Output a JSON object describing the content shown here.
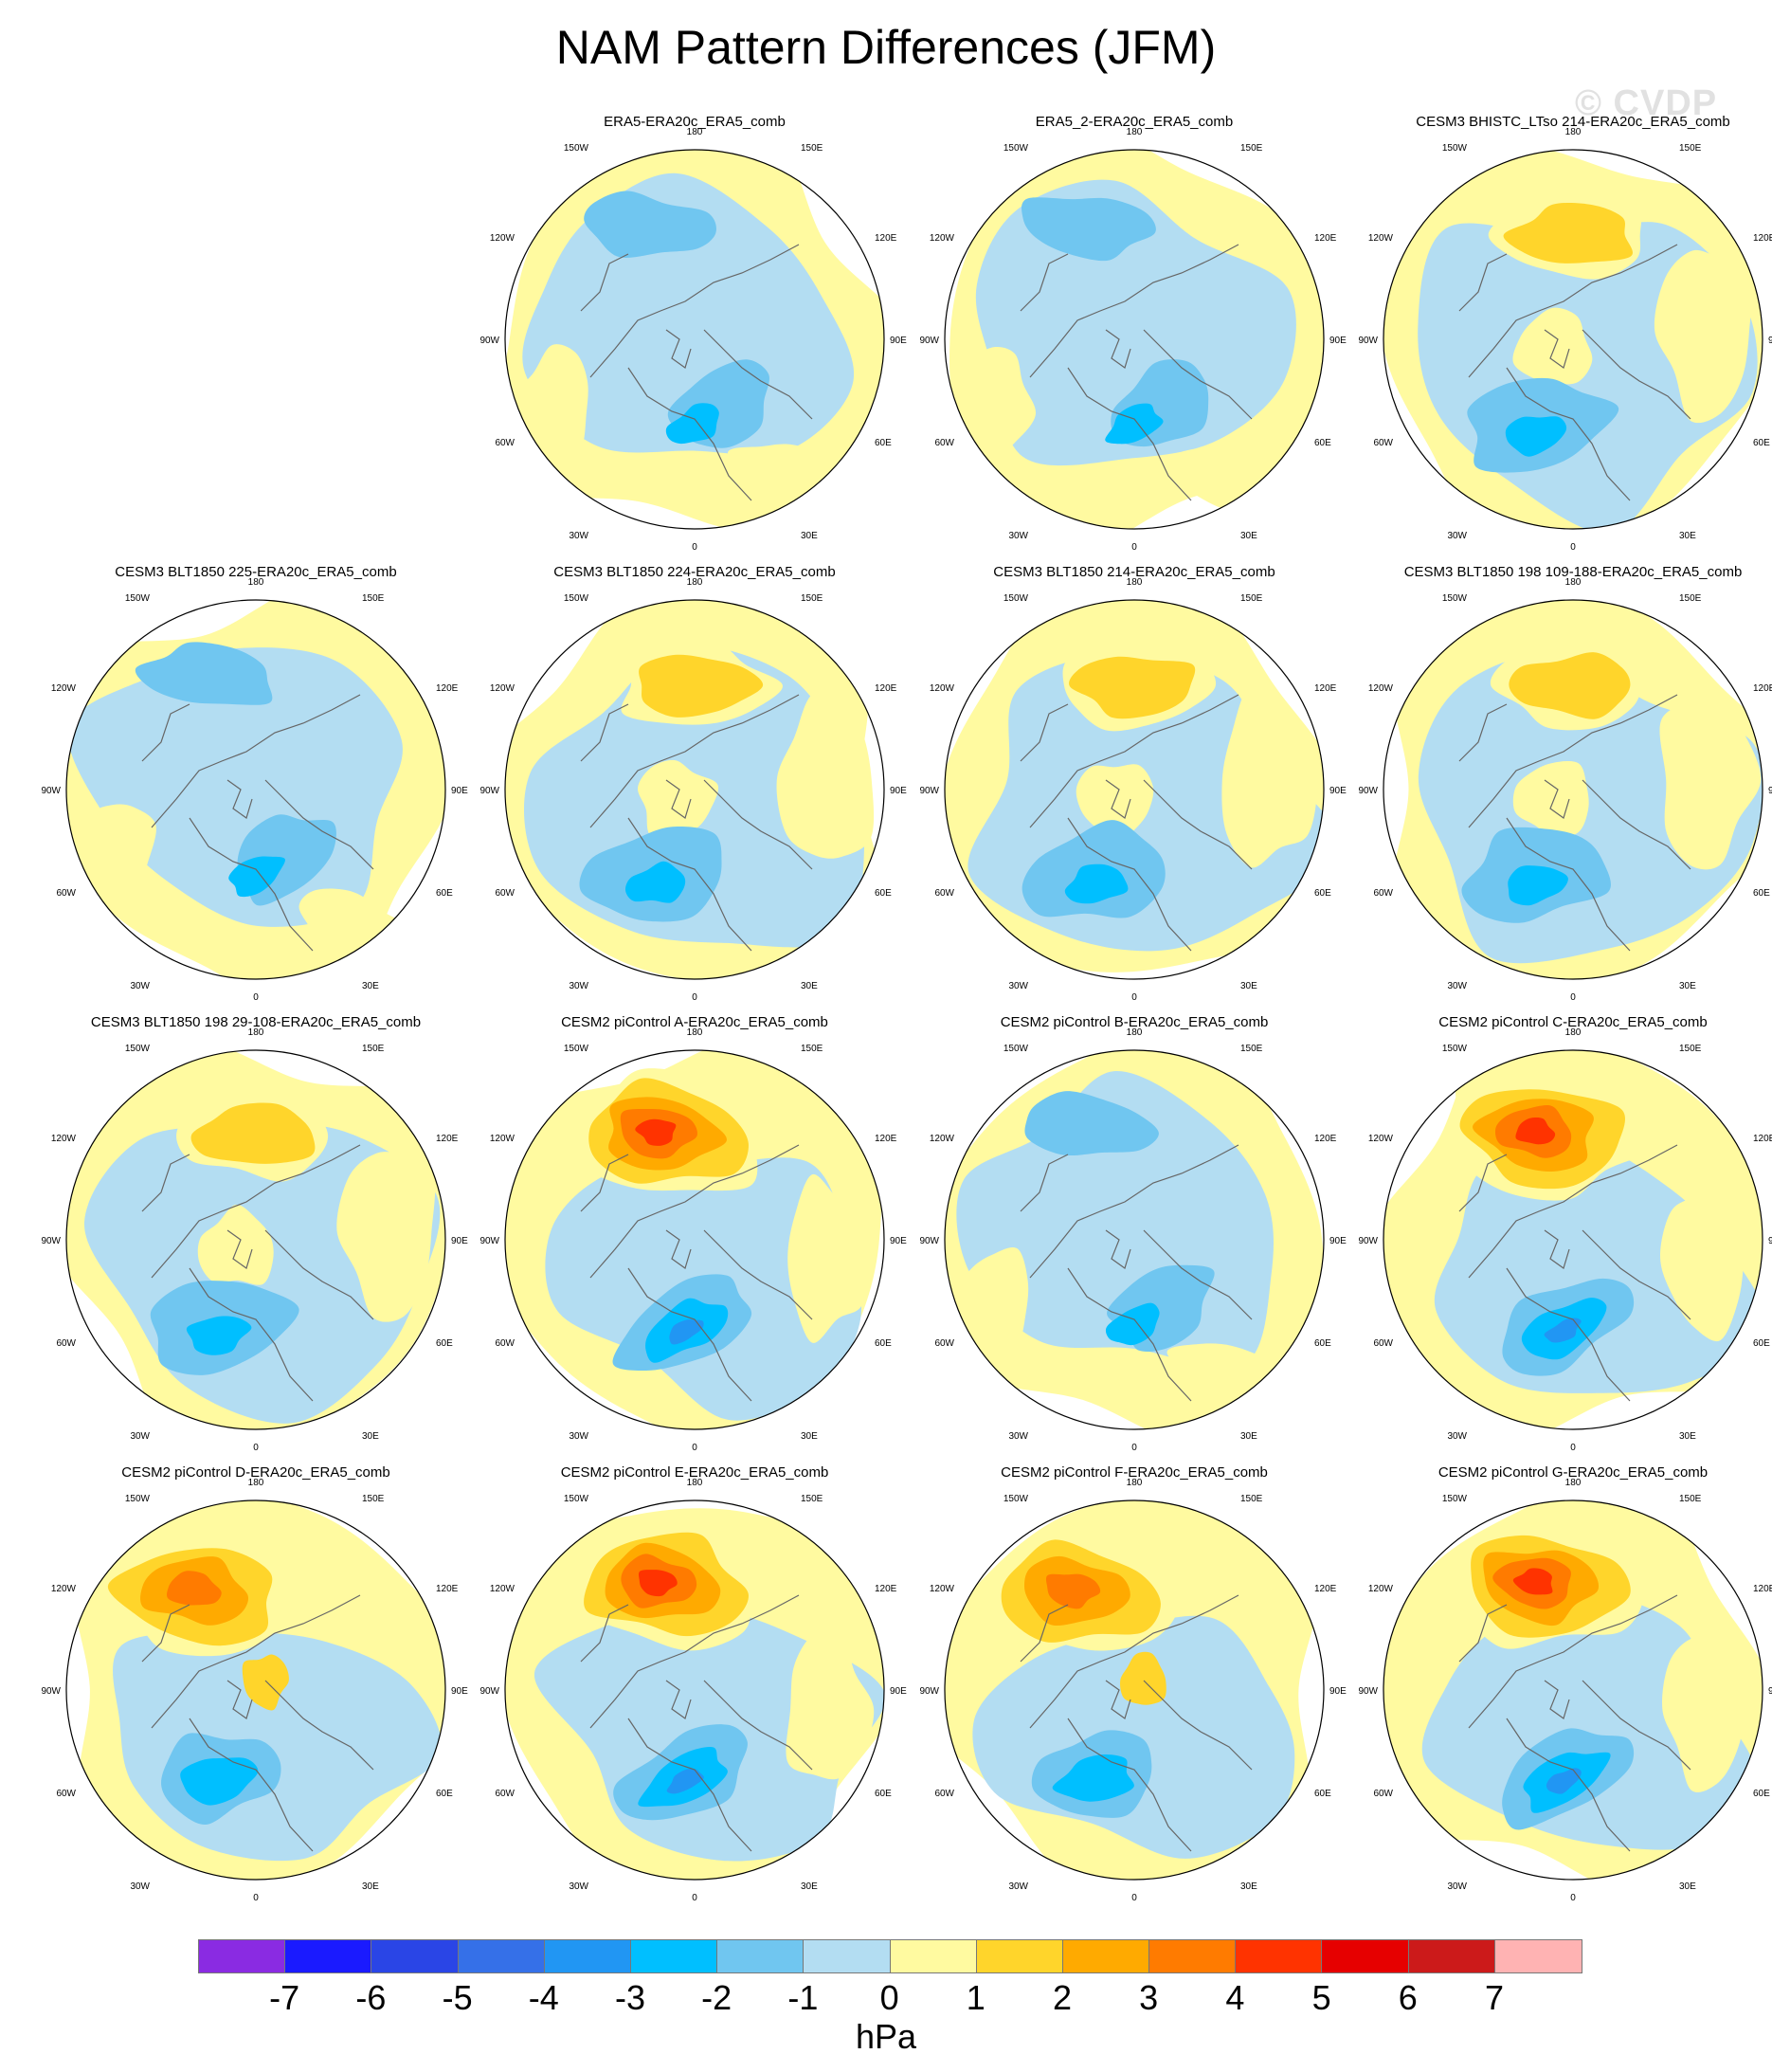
{
  "title": "NAM Pattern Differences (JFM)",
  "watermark": "© CVDP",
  "panels": [
    {
      "title": "ERA5-ERA20c_ERA5_comb",
      "pattern": "std"
    },
    {
      "title": "ERA5_2-ERA20c_ERA5_comb",
      "pattern": "std"
    },
    {
      "title": "CESM3 BHISTC_LTso 214-ERA20c_ERA5_comb",
      "pattern": "pac"
    },
    {
      "title": "CESM3 BLT1850 225-ERA20c_ERA5_comb",
      "pattern": "std"
    },
    {
      "title": "CESM3 BLT1850 224-ERA20c_ERA5_comb",
      "pattern": "pac"
    },
    {
      "title": "CESM3 BLT1850 214-ERA20c_ERA5_comb",
      "pattern": "pac"
    },
    {
      "title": "CESM3 BLT1850 198 109-188-ERA20c_ERA5_comb",
      "pattern": "pac"
    },
    {
      "title": "CESM3 BLT1850 198 29-108-ERA20c_ERA5_comb",
      "pattern": "pac"
    },
    {
      "title": "CESM2 piControl A-ERA20c_ERA5_comb",
      "pattern": "strong"
    },
    {
      "title": "CESM2 piControl B-ERA20c_ERA5_comb",
      "pattern": "std"
    },
    {
      "title": "CESM2 piControl C-ERA20c_ERA5_comb",
      "pattern": "strong"
    },
    {
      "title": "CESM2 piControl D-ERA20c_ERA5_comb",
      "pattern": "strongdiff"
    },
    {
      "title": "CESM2 piControl E-ERA20c_ERA5_comb",
      "pattern": "strong"
    },
    {
      "title": "CESM2 piControl F-ERA20c_ERA5_comb",
      "pattern": "strongdiff"
    },
    {
      "title": "CESM2 piControl G-ERA20c_ERA5_comb",
      "pattern": "strong"
    }
  ],
  "lon_labels": {
    "top": "180",
    "tl": "150W",
    "tr": "150E",
    "ul": "120W",
    "ur": "120E",
    "l": "90W",
    "r": "90E",
    "ll": "60W",
    "lr": "60E",
    "bl": "30W",
    "br": "30E",
    "bottom": "0"
  },
  "colorbar": {
    "colors": [
      "#8a2be2",
      "#1a1aff",
      "#2a45e6",
      "#3570e8",
      "#2196f3",
      "#00bfff",
      "#70c6f0",
      "#b3ddf2",
      "#fffaa0",
      "#ffd52b",
      "#ffaa00",
      "#ff7b00",
      "#ff3300",
      "#e60000",
      "#cc1a1a",
      "#ffb3b3"
    ],
    "ticks": [
      "-7",
      "-6",
      "-5",
      "-4",
      "-3",
      "-2",
      "-1",
      "0",
      "1",
      "2",
      "3",
      "4",
      "5",
      "6",
      "7"
    ],
    "unit": "hPa"
  }
}
